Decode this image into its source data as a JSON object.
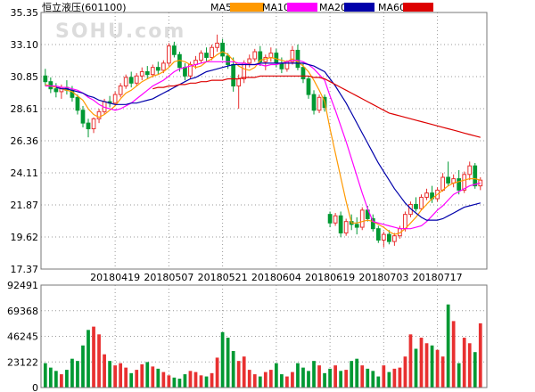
{
  "header": {
    "title": "恒立液压(601100)",
    "watermark": "SOHU.com",
    "legend": [
      {
        "label": "MA5",
        "color": "#ff9900"
      },
      {
        "label": "MA10",
        "color": "#ff00ff"
      },
      {
        "label": "MA20",
        "color": "#0000aa"
      },
      {
        "label": "MA60",
        "color": "#dd0000"
      }
    ]
  },
  "colors": {
    "up": "#e83030",
    "down": "#009933",
    "grid": "#999999"
  },
  "chart_data": [
    {
      "type": "candlestick",
      "title": "恒立液压(601100)",
      "ylim": [
        17.37,
        35.35
      ],
      "y_ticks": [
        "35.35",
        "33.10",
        "30.85",
        "28.61",
        "26.36",
        "24.11",
        "21.87",
        "19.62",
        "17.37"
      ],
      "x_ticks": [
        {
          "label": "20180419",
          "index": 13
        },
        {
          "label": "20180507",
          "index": 23
        },
        {
          "label": "20180521",
          "index": 33
        },
        {
          "label": "20180604",
          "index": 43
        },
        {
          "label": "20180619",
          "index": 53
        },
        {
          "label": "20180703",
          "index": 63
        },
        {
          "label": "20180717",
          "index": 73
        }
      ],
      "candles": [
        [
          30.9,
          31.4,
          30.2,
          30.5
        ],
        [
          30.5,
          30.8,
          29.7,
          30.0
        ],
        [
          30.0,
          30.4,
          29.4,
          29.8
        ],
        [
          29.8,
          30.3,
          29.3,
          30.1
        ],
        [
          30.1,
          30.6,
          29.6,
          29.9
        ],
        [
          29.9,
          30.2,
          29.1,
          29.4
        ],
        [
          29.4,
          29.6,
          28.2,
          28.5
        ],
        [
          28.5,
          28.8,
          27.3,
          27.6
        ],
        [
          27.6,
          27.9,
          26.6,
          27.2
        ],
        [
          27.2,
          28.0,
          26.9,
          27.9
        ],
        [
          27.9,
          28.6,
          27.6,
          28.4
        ],
        [
          28.4,
          29.3,
          28.2,
          29.1
        ],
        [
          29.1,
          29.5,
          28.7,
          29.0
        ],
        [
          29.0,
          29.8,
          28.8,
          29.6
        ],
        [
          29.6,
          30.4,
          29.4,
          30.2
        ],
        [
          30.2,
          31.0,
          30.0,
          30.8
        ],
        [
          30.8,
          31.2,
          30.1,
          30.4
        ],
        [
          30.4,
          31.1,
          30.2,
          30.9
        ],
        [
          30.9,
          31.5,
          30.6,
          31.2
        ],
        [
          31.2,
          31.6,
          30.7,
          31.0
        ],
        [
          31.0,
          31.7,
          30.8,
          31.5
        ],
        [
          31.5,
          31.9,
          31.0,
          31.3
        ],
        [
          31.3,
          32.0,
          31.1,
          31.8
        ],
        [
          31.8,
          33.2,
          31.6,
          33.0
        ],
        [
          33.0,
          33.3,
          32.2,
          32.4
        ],
        [
          32.4,
          32.6,
          31.2,
          31.5
        ],
        [
          31.5,
          31.8,
          30.6,
          30.9
        ],
        [
          30.9,
          31.9,
          30.7,
          31.7
        ],
        [
          31.7,
          32.3,
          31.4,
          32.0
        ],
        [
          32.0,
          32.7,
          31.8,
          32.5
        ],
        [
          32.5,
          32.9,
          31.9,
          32.2
        ],
        [
          32.2,
          33.1,
          32.0,
          32.9
        ],
        [
          32.9,
          33.8,
          32.6,
          33.2
        ],
        [
          33.2,
          33.5,
          32.0,
          32.3
        ],
        [
          32.3,
          32.5,
          31.4,
          31.7
        ],
        [
          31.7,
          32.2,
          29.8,
          30.2
        ],
        [
          30.2,
          31.0,
          28.6,
          30.7
        ],
        [
          30.7,
          32.0,
          30.4,
          31.8
        ],
        [
          31.8,
          32.4,
          31.5,
          32.1
        ],
        [
          32.1,
          32.8,
          31.9,
          32.6
        ],
        [
          32.6,
          33.0,
          31.6,
          31.9
        ],
        [
          31.9,
          32.4,
          31.3,
          32.2
        ],
        [
          32.2,
          32.9,
          31.9,
          32.5
        ],
        [
          32.5,
          32.8,
          31.5,
          31.8
        ],
        [
          31.8,
          32.2,
          31.1,
          31.4
        ],
        [
          31.4,
          32.0,
          31.2,
          31.9
        ],
        [
          31.9,
          33.0,
          31.7,
          32.7
        ],
        [
          32.7,
          33.1,
          31.3,
          31.5
        ],
        [
          31.5,
          31.8,
          30.4,
          30.7
        ],
        [
          30.7,
          30.9,
          29.3,
          29.6
        ],
        [
          29.6,
          29.9,
          28.2,
          28.5
        ],
        [
          28.5,
          29.6,
          28.3,
          29.4
        ],
        [
          29.4,
          29.6,
          28.4,
          28.7
        ],
        [
          21.2,
          21.4,
          20.3,
          20.6
        ],
        [
          20.6,
          21.3,
          20.4,
          21.1
        ],
        [
          21.1,
          21.4,
          19.6,
          19.9
        ],
        [
          19.9,
          20.9,
          19.7,
          20.7
        ],
        [
          20.7,
          21.2,
          20.1,
          20.5
        ],
        [
          20.5,
          21.0,
          19.8,
          20.3
        ],
        [
          20.3,
          21.7,
          20.1,
          21.5
        ],
        [
          21.5,
          21.8,
          20.7,
          20.9
        ],
        [
          20.9,
          21.2,
          20.0,
          20.2
        ],
        [
          20.2,
          20.4,
          19.2,
          19.4
        ],
        [
          19.4,
          20.0,
          18.9,
          19.8
        ],
        [
          19.8,
          20.1,
          19.1,
          19.3
        ],
        [
          19.3,
          19.9,
          19.0,
          19.7
        ],
        [
          19.7,
          20.4,
          19.5,
          20.2
        ],
        [
          20.2,
          21.4,
          20.0,
          21.2
        ],
        [
          21.2,
          22.1,
          21.0,
          21.9
        ],
        [
          21.9,
          22.4,
          21.4,
          21.6
        ],
        [
          21.6,
          22.6,
          21.5,
          22.4
        ],
        [
          22.4,
          23.0,
          22.2,
          22.7
        ],
        [
          22.7,
          23.2,
          22.0,
          22.3
        ],
        [
          22.3,
          23.1,
          22.1,
          22.9
        ],
        [
          22.9,
          24.1,
          22.8,
          23.8
        ],
        [
          23.8,
          24.9,
          23.2,
          23.4
        ],
        [
          23.4,
          24.0,
          23.1,
          23.7
        ],
        [
          23.7,
          24.3,
          22.6,
          22.9
        ],
        [
          22.9,
          24.2,
          22.7,
          24.0
        ],
        [
          24.0,
          24.9,
          23.6,
          24.6
        ],
        [
          24.6,
          24.8,
          23.0,
          23.2
        ],
        [
          23.2,
          23.8,
          22.9,
          23.6
        ]
      ],
      "ma_series": [
        {
          "name": "MA5",
          "color": "#ff9900",
          "values": [
            30.3,
            30.2,
            30.1,
            30.0,
            29.9,
            29.8,
            29.5,
            29.2,
            28.6,
            28.2,
            28.0,
            28.2,
            28.5,
            28.8,
            29.3,
            29.7,
            29.9,
            30.2,
            30.5,
            30.7,
            30.9,
            31.0,
            31.2,
            31.5,
            31.9,
            32.0,
            31.9,
            31.7,
            31.5,
            31.6,
            31.9,
            32.1,
            32.4,
            32.6,
            32.4,
            32.0,
            31.6,
            31.4,
            31.3,
            31.5,
            32.0,
            32.1,
            32.2,
            32.1,
            32.0,
            31.9,
            32.1,
            31.9,
            31.6,
            31.2,
            30.6,
            29.9,
            29.1,
            27.2,
            25.5,
            23.8,
            22.1,
            20.6,
            20.6,
            20.7,
            20.8,
            20.7,
            20.5,
            20.3,
            20.0,
            19.8,
            19.9,
            20.2,
            20.6,
            21.0,
            21.5,
            21.9,
            22.3,
            22.6,
            22.9,
            23.2,
            23.4,
            23.5,
            23.6,
            23.7,
            23.7,
            23.6
          ]
        },
        {
          "name": "MA10",
          "color": "#ff00ff",
          "values": [
            30.2,
            30.2,
            30.2,
            30.1,
            30.1,
            30.0,
            29.9,
            29.7,
            29.4,
            29.2,
            28.9,
            28.7,
            28.6,
            28.5,
            28.6,
            28.8,
            29.0,
            29.3,
            29.6,
            29.9,
            30.2,
            30.4,
            30.6,
            30.9,
            31.2,
            31.4,
            31.5,
            31.6,
            31.7,
            31.8,
            31.9,
            31.9,
            31.9,
            31.9,
            31.9,
            31.9,
            31.8,
            31.8,
            31.7,
            31.7,
            31.7,
            31.6,
            31.7,
            31.7,
            31.8,
            31.9,
            32.0,
            32.0,
            31.9,
            31.7,
            31.4,
            31.0,
            30.6,
            29.5,
            28.5,
            27.4,
            26.3,
            25.1,
            23.9,
            22.7,
            21.6,
            20.7,
            20.6,
            20.5,
            20.4,
            20.3,
            20.2,
            20.2,
            20.2,
            20.3,
            20.4,
            20.7,
            21.1,
            21.5,
            21.8,
            22.2,
            22.6,
            22.8,
            23.0,
            23.2,
            23.3,
            23.4
          ]
        },
        {
          "name": "MA20",
          "color": "#0000aa",
          "values": [
            null,
            null,
            30.1,
            30.0,
            30.0,
            29.9,
            29.8,
            29.7,
            29.5,
            29.4,
            29.2,
            29.1,
            29.0,
            28.9,
            28.9,
            28.9,
            29.0,
            29.0,
            29.1,
            29.2,
            29.3,
            29.5,
            29.7,
            29.9,
            30.1,
            30.3,
            30.5,
            30.7,
            30.8,
            31.0,
            31.2,
            31.3,
            31.4,
            31.5,
            31.6,
            31.7,
            31.7,
            31.7,
            31.7,
            31.7,
            31.8,
            31.8,
            31.8,
            31.8,
            31.8,
            31.8,
            31.8,
            31.8,
            31.8,
            31.7,
            31.6,
            31.4,
            31.2,
            30.7,
            30.2,
            29.6,
            29.0,
            28.3,
            27.6,
            26.9,
            26.2,
            25.5,
            24.8,
            24.2,
            23.6,
            23.0,
            22.5,
            22.0,
            21.6,
            21.3,
            21.0,
            20.8,
            20.8,
            20.8,
            20.9,
            21.1,
            21.3,
            21.5,
            21.7,
            21.8,
            21.9,
            22.0
          ]
        },
        {
          "name": "MA60",
          "color": "#dd0000",
          "values": [
            null,
            null,
            null,
            null,
            null,
            null,
            null,
            null,
            null,
            null,
            null,
            null,
            null,
            null,
            null,
            null,
            null,
            null,
            null,
            null,
            30.0,
            30.1,
            30.1,
            30.2,
            30.2,
            30.3,
            30.3,
            30.4,
            30.4,
            30.5,
            30.5,
            30.6,
            30.6,
            30.6,
            30.7,
            30.7,
            30.7,
            30.8,
            30.8,
            30.8,
            30.9,
            30.9,
            30.9,
            30.9,
            30.9,
            30.9,
            30.9,
            30.9,
            30.9,
            30.9,
            30.8,
            30.8,
            30.7,
            30.5,
            30.3,
            30.1,
            29.9,
            29.7,
            29.5,
            29.3,
            29.1,
            28.9,
            28.7,
            28.5,
            28.3,
            28.2,
            28.1,
            28.0,
            27.9,
            27.8,
            27.7,
            27.6,
            27.5,
            27.4,
            27.3,
            27.2,
            27.1,
            27.0,
            26.9,
            26.8,
            26.7,
            26.6
          ]
        }
      ]
    },
    {
      "type": "bar",
      "ylim": [
        0,
        92491
      ],
      "y_ticks": [
        "92491",
        "69368",
        "46245",
        "23122",
        "0"
      ],
      "values": [
        22000,
        18000,
        15000,
        12000,
        16000,
        26000,
        24000,
        38000,
        52000,
        55000,
        48000,
        30000,
        24000,
        20000,
        22000,
        18000,
        13000,
        16000,
        21000,
        23000,
        19000,
        17000,
        14000,
        11000,
        9000,
        8000,
        12000,
        15000,
        14000,
        11000,
        10000,
        13000,
        27000,
        50000,
        45000,
        33000,
        24000,
        28000,
        16000,
        12000,
        10000,
        14000,
        16000,
        22000,
        12000,
        10000,
        14000,
        22000,
        18000,
        15000,
        24000,
        20000,
        13000,
        17000,
        20000,
        15000,
        16000,
        24000,
        26000,
        20000,
        17000,
        15000,
        10000,
        20000,
        14000,
        17000,
        18000,
        28000,
        48000,
        35000,
        45000,
        40000,
        38000,
        34000,
        28000,
        75000,
        60000,
        22000,
        45000,
        40000,
        32000,
        58000
      ]
    }
  ]
}
